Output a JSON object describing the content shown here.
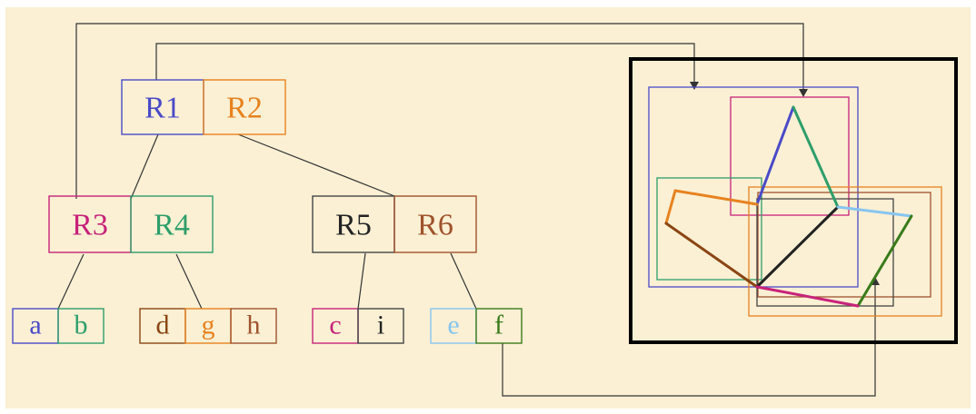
{
  "tree": {
    "root": [
      {
        "label": "R1",
        "color": "#4a4ac8"
      },
      {
        "label": "R2",
        "color": "#e8821f"
      }
    ],
    "level2": [
      {
        "label": "R3",
        "color": "#c8227a"
      },
      {
        "label": "R4",
        "color": "#2f9e6a"
      },
      {
        "label": "R5",
        "color": "#222222"
      },
      {
        "label": "R6",
        "color": "#a0522d"
      }
    ],
    "leaves": [
      {
        "label": "a",
        "color": "#4a4ac8"
      },
      {
        "label": "b",
        "color": "#2f9e6a"
      },
      {
        "label": "d",
        "color": "#8b4513"
      },
      {
        "label": "g",
        "color": "#e8821f"
      },
      {
        "label": "h",
        "color": "#a0522d"
      },
      {
        "label": "c",
        "color": "#c8227a"
      },
      {
        "label": "i",
        "color": "#222222"
      },
      {
        "label": "e",
        "color": "#87c5f0"
      },
      {
        "label": "f",
        "color": "#3a7a1a"
      }
    ]
  },
  "colors": {
    "background": "#fbf0d4",
    "connector": "#333333",
    "frame": "#000000"
  }
}
